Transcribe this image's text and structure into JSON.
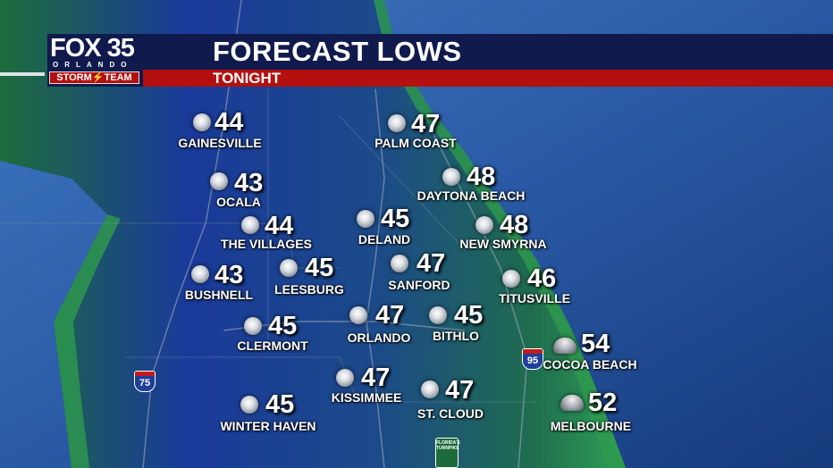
{
  "header": {
    "title": "FORECAST LOWS",
    "subtitle": "TONIGHT"
  },
  "logo": {
    "station": "FOX 35",
    "city": "ORLANDO",
    "team": "STORM⚡TEAM"
  },
  "colors": {
    "header_navy": "#101a4c",
    "header_red": "#b3100f",
    "ocean": "#2a5aa5",
    "land": "#1f7a4a"
  },
  "cities": [
    {
      "name": "GAINESVILLE",
      "low": "44",
      "icon": "moon-icon"
    },
    {
      "name": "PALM COAST",
      "low": "47",
      "icon": "moon-icon"
    },
    {
      "name": "OCALA",
      "low": "43",
      "icon": "moon-icon"
    },
    {
      "name": "DAYTONA BEACH",
      "low": "48",
      "icon": "moon-icon"
    },
    {
      "name": "THE VILLAGES",
      "low": "44",
      "icon": "moon-icon"
    },
    {
      "name": "DELAND",
      "low": "45",
      "icon": "moon-icon"
    },
    {
      "name": "NEW SMYRNA",
      "low": "48",
      "icon": "moon-icon"
    },
    {
      "name": "BUSHNELL",
      "low": "43",
      "icon": "moon-icon"
    },
    {
      "name": "LEESBURG",
      "low": "45",
      "icon": "moon-icon"
    },
    {
      "name": "SANFORD",
      "low": "47",
      "icon": "moon-icon"
    },
    {
      "name": "TITUSVILLE",
      "low": "46",
      "icon": "moon-icon"
    },
    {
      "name": "CLERMONT",
      "low": "45",
      "icon": "moon-icon"
    },
    {
      "name": "ORLANDO",
      "low": "47",
      "icon": "moon-icon"
    },
    {
      "name": "BITHLO",
      "low": "45",
      "icon": "moon-icon"
    },
    {
      "name": "COCOA BEACH",
      "low": "54",
      "icon": "partly-cloudy-night-icon"
    },
    {
      "name": "KISSIMMEE",
      "low": "47",
      "icon": "moon-icon"
    },
    {
      "name": "ST. CLOUD",
      "low": "47",
      "icon": "moon-icon"
    },
    {
      "name": "WINTER HAVEN",
      "low": "45",
      "icon": "moon-icon"
    },
    {
      "name": "MELBOURNE",
      "low": "52",
      "icon": "partly-cloudy-night-icon"
    }
  ],
  "highways": [
    {
      "label": "75",
      "icon": "interstate-shield-icon"
    },
    {
      "label": "95",
      "icon": "interstate-shield-icon"
    },
    {
      "label": "FLORIDA'S TURNPIKE",
      "icon": "turnpike-sign-icon"
    }
  ]
}
